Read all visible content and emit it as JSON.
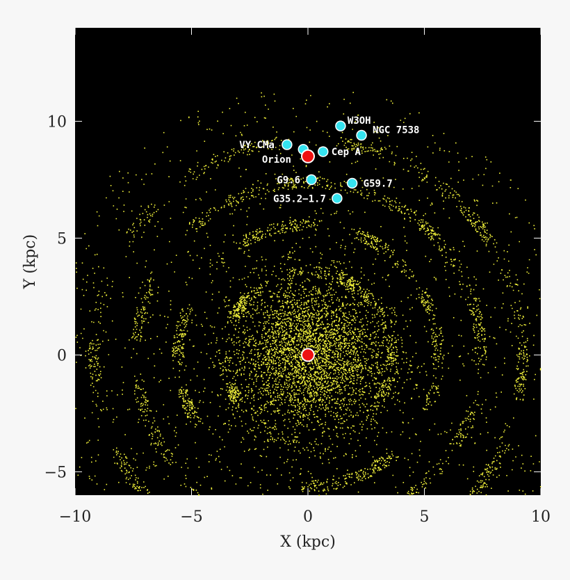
{
  "chart_data": {
    "type": "scatter",
    "xlabel": "X (kpc)",
    "ylabel": "Y (kpc)",
    "xlim": [
      -10,
      10
    ],
    "ylim": [
      -6,
      14
    ],
    "xticks": [
      -10,
      -5,
      0,
      5,
      10
    ],
    "yticks": [
      -5,
      0,
      5,
      10
    ],
    "xtick_labels": [
      "−10",
      "−5",
      "0",
      "5",
      "10"
    ],
    "ytick_labels": [
      "−5",
      "0",
      "5",
      "10"
    ],
    "background": "#000000",
    "star_color": "#f2f23a",
    "series": [
      {
        "marker": "cyan-circle",
        "color": "#35e3f0",
        "points": [
          {
            "label": "W3OH",
            "x": 1.4,
            "y": 9.8
          },
          {
            "label": "NGC 7538",
            "x": 2.3,
            "y": 9.4
          },
          {
            "label": "VY CMa",
            "x": -0.9,
            "y": 9.0
          },
          {
            "label": "",
            "x": -0.2,
            "y": 8.8
          },
          {
            "label": "Cep A",
            "x": 0.65,
            "y": 8.7
          },
          {
            "label": "G9.6",
            "x": 0.15,
            "y": 7.5
          },
          {
            "label": "G59.7",
            "x": 1.9,
            "y": 7.35
          },
          {
            "label": "G35.2−1.7",
            "x": 1.25,
            "y": 6.7
          }
        ]
      },
      {
        "marker": "red-circle",
        "color": "#ee1111",
        "points": [
          {
            "label": "Orion",
            "x": 0.0,
            "y": 8.5
          },
          {
            "label": "",
            "x": 0.0,
            "y": 0.0
          }
        ]
      }
    ]
  }
}
